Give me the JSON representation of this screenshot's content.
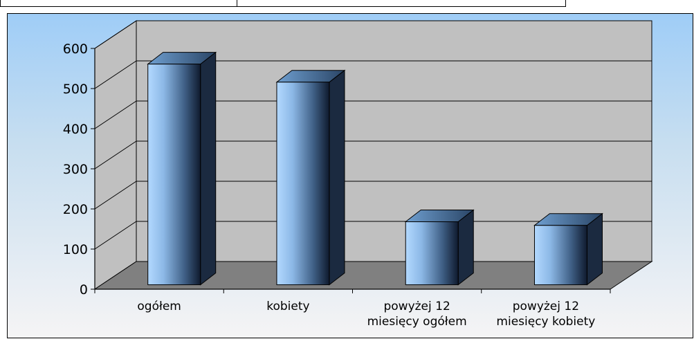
{
  "chart_data": {
    "type": "bar",
    "style": "3d-column",
    "categories": [
      "ogółem",
      "kobiety",
      "powyżej 12 miesięcy ogółem",
      "powyżej 12 miesięcy kobiety"
    ],
    "category_lines": [
      [
        "ogółem"
      ],
      [
        "kobiety"
      ],
      [
        "powyżej 12",
        "miesięcy ogółem"
      ],
      [
        "powyżej 12",
        "miesięcy kobiety"
      ]
    ],
    "values": [
      550,
      505,
      157,
      148
    ],
    "yticks": [
      0,
      100,
      200,
      300,
      400,
      500,
      600
    ],
    "ylim": [
      0,
      600
    ],
    "grid": true,
    "legend": "none",
    "colors": {
      "bar_light": "#b3d9ff",
      "bar_dark": "#0f1a2e",
      "top_light": "#6f9fd0",
      "top_dark": "#2a4566",
      "side": "#1b2a40",
      "wall": "#c0c0c0",
      "floor": "#808080"
    }
  }
}
